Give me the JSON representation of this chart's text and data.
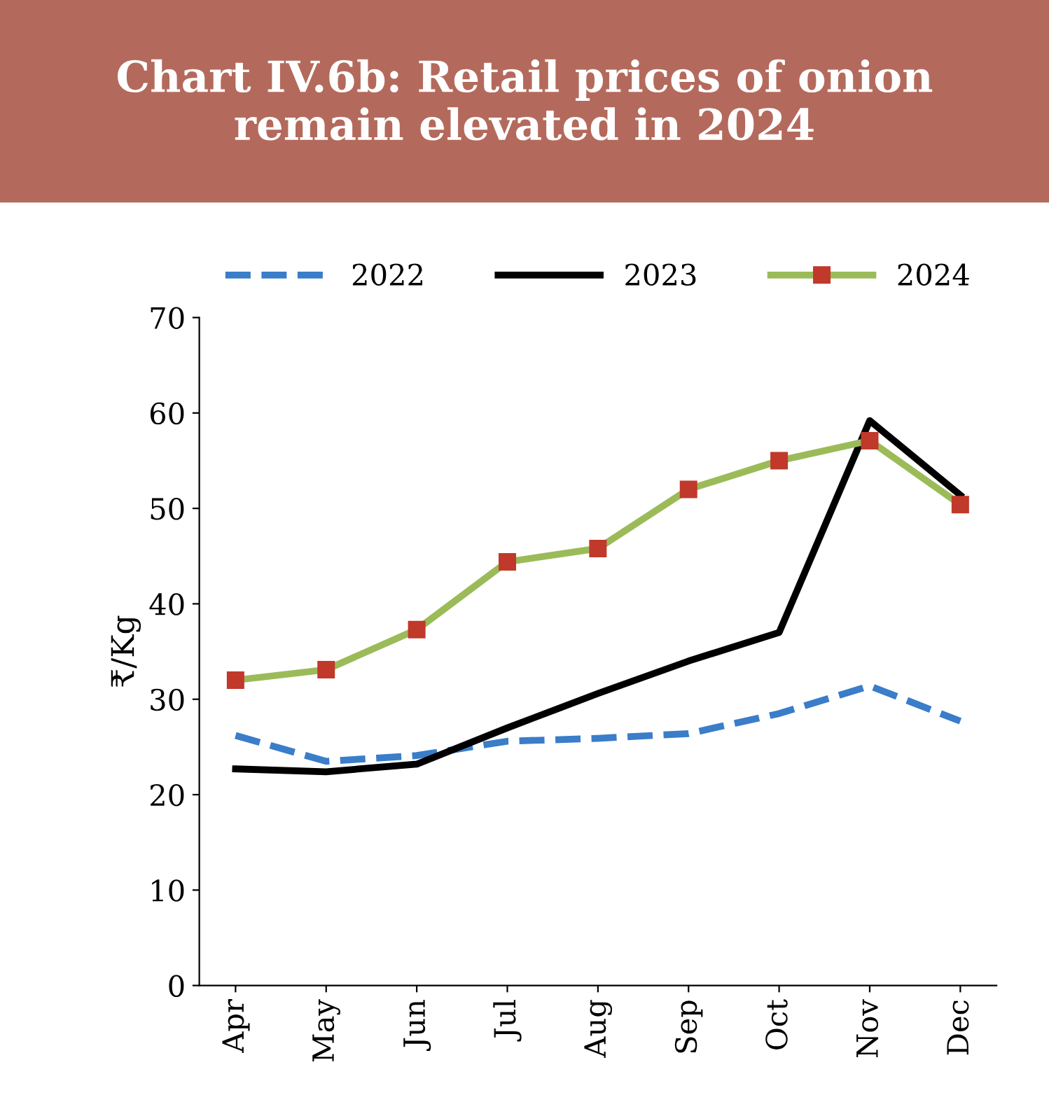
{
  "chart_data": {
    "type": "line",
    "title": "Chart IV.6b: Retail prices of onion\nremain elevated in 2024",
    "ylabel": "₹/Kg",
    "categories": [
      "Apr",
      "May",
      "Jun",
      "Jul",
      "Aug",
      "Sep",
      "Oct",
      "Nov",
      "Dec"
    ],
    "series": [
      {
        "name": "2022",
        "color": "#3a7dc9",
        "line_style": "dashed",
        "marker": "none",
        "values": [
          26.2,
          23.5,
          24.1,
          25.6,
          25.9,
          26.4,
          28.5,
          31.4,
          27.7
        ]
      },
      {
        "name": "2023",
        "color": "#000000",
        "line_style": "solid",
        "marker": "none",
        "values": [
          22.7,
          22.4,
          23.2,
          27.0,
          30.6,
          34.0,
          37.0,
          59.2,
          51.4
        ]
      },
      {
        "name": "2024",
        "color": "#9bbb59",
        "line_style": "solid",
        "marker": "square",
        "values": [
          32.0,
          33.1,
          37.3,
          44.4,
          45.8,
          52.0,
          55.0,
          57.1,
          50.4
        ]
      }
    ],
    "ylim": [
      0,
      70
    ],
    "yticks": [
      0,
      10,
      20,
      30,
      40,
      50,
      60,
      70
    ],
    "grid": false,
    "legend": "top"
  }
}
